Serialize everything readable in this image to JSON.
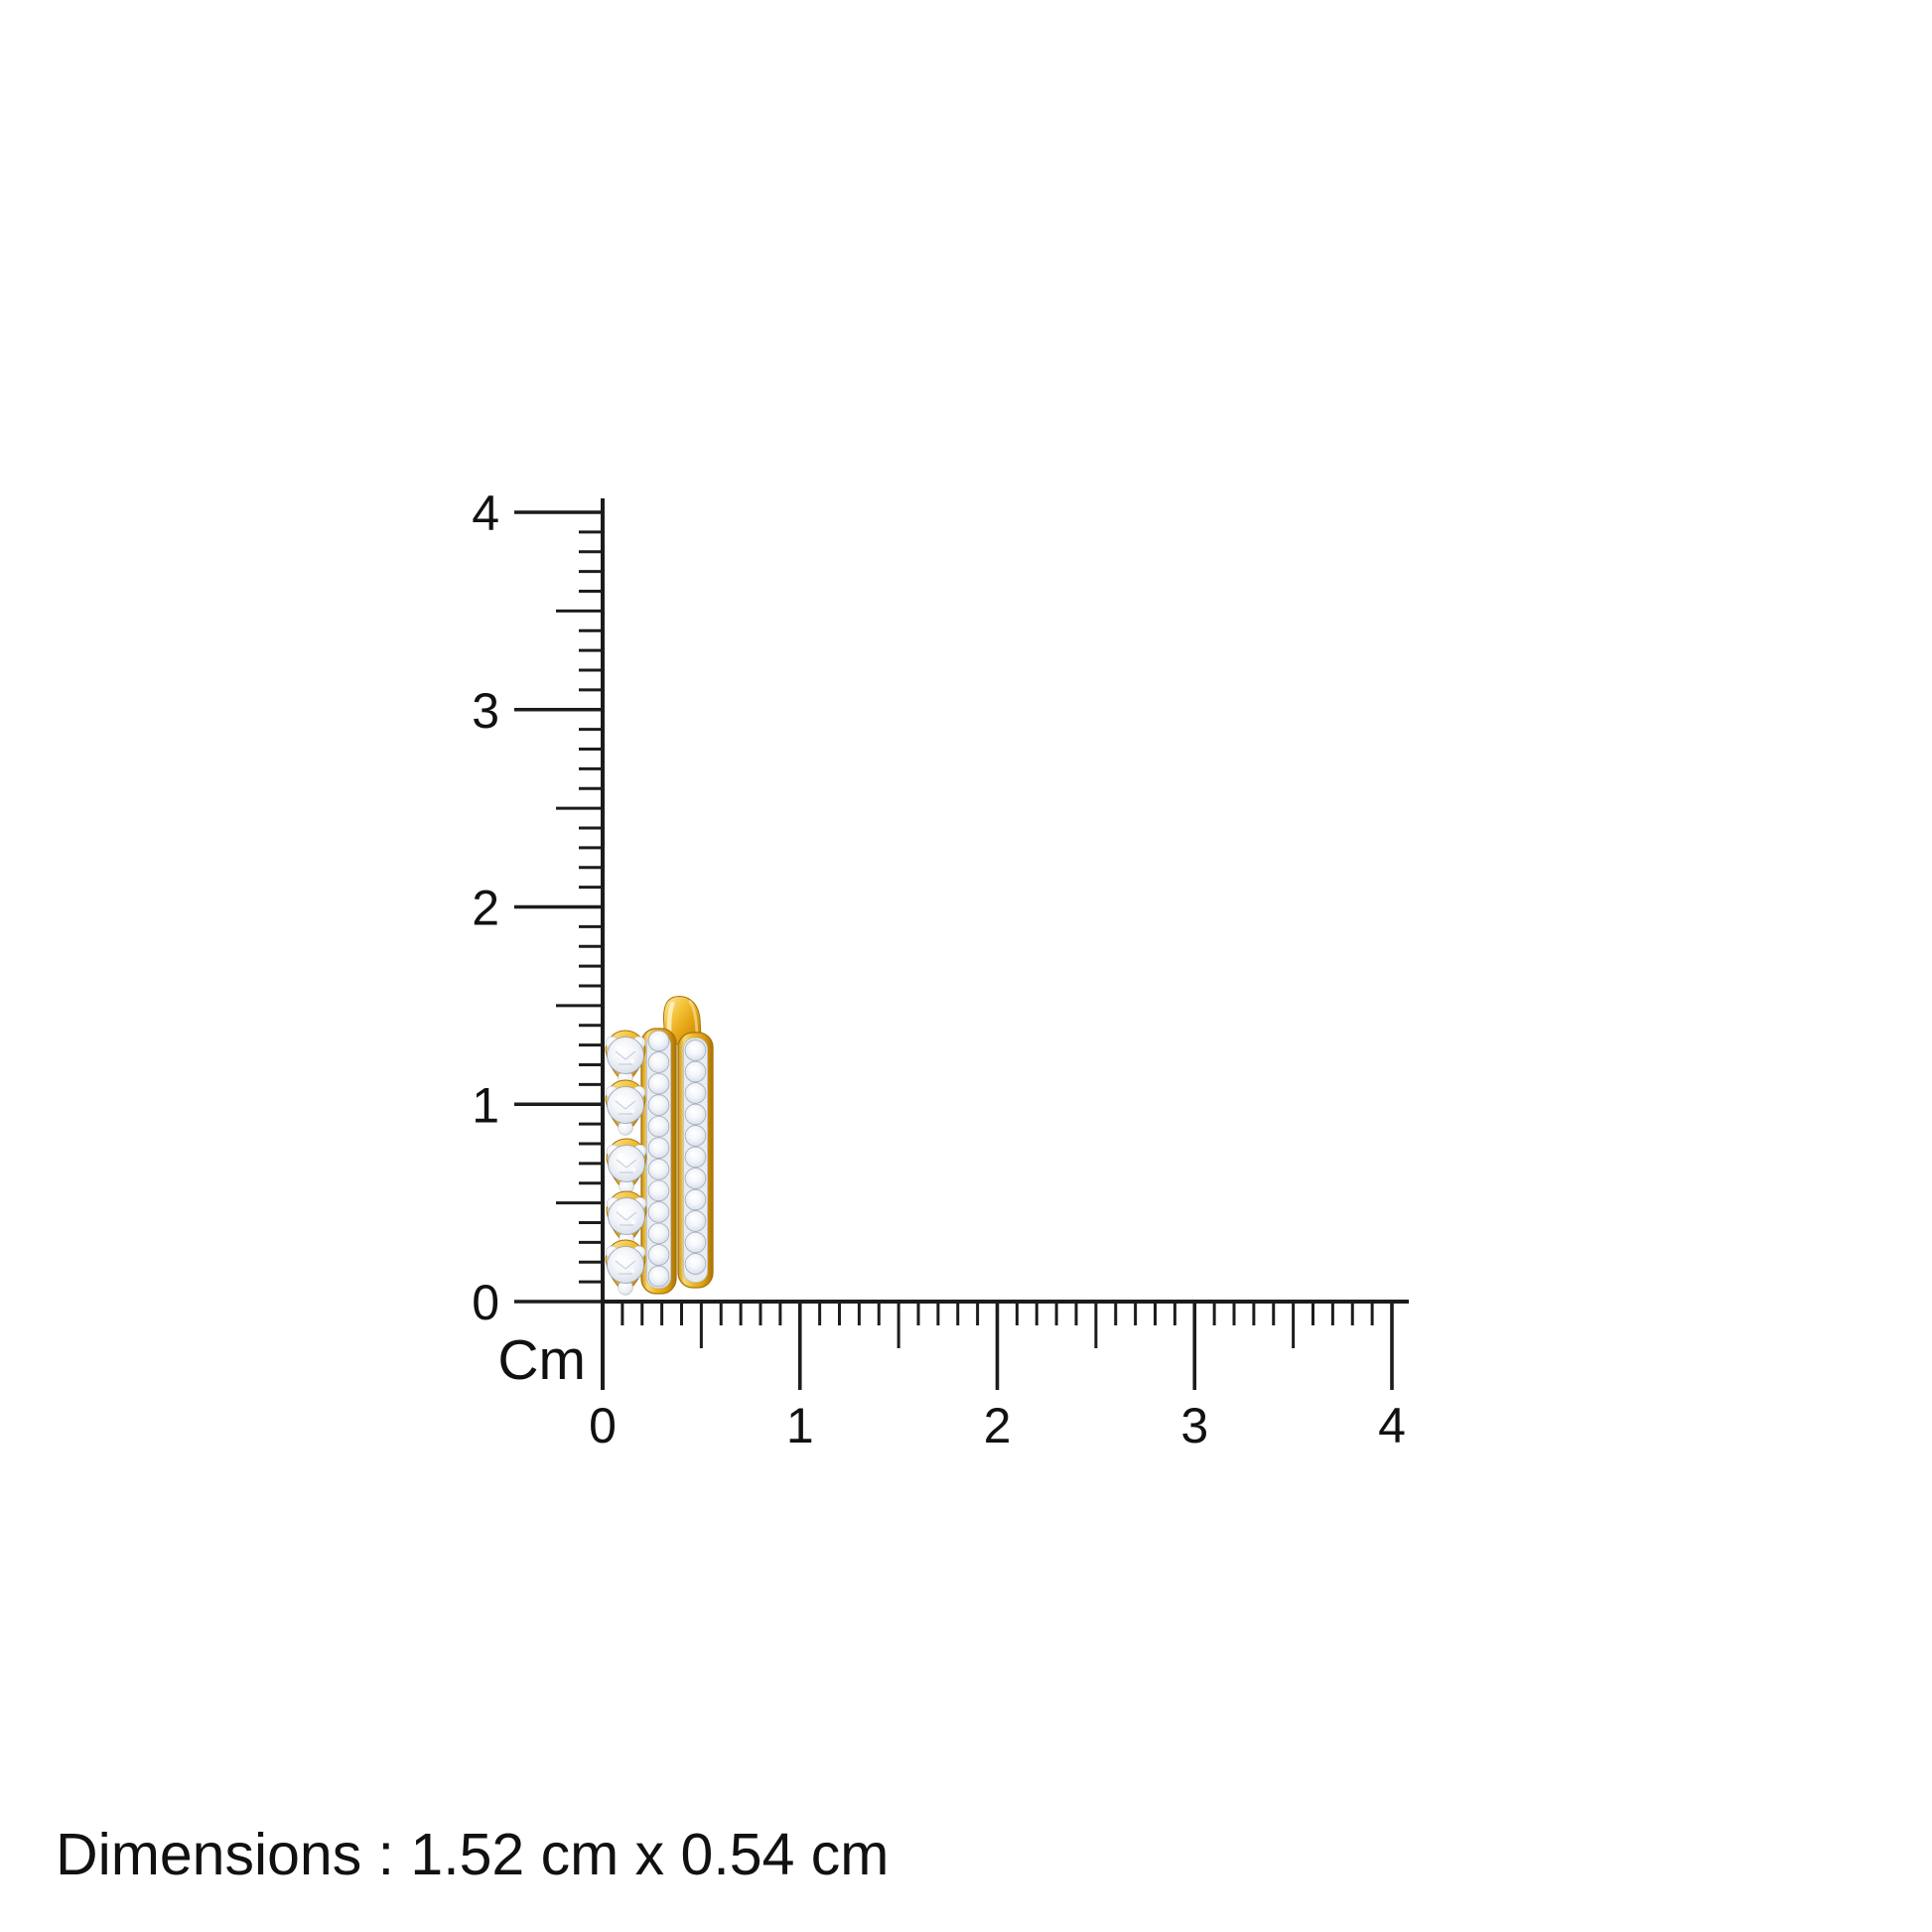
{
  "image_type": "product-dimension-diagram",
  "caption": {
    "text": "Dimensions : 1.52 cm x 0.54 cm"
  },
  "ruler": {
    "unit_label": "Cm",
    "vertical_labels": [
      "0",
      "1",
      "2",
      "3",
      "4"
    ],
    "horizontal_labels": [
      "0",
      "1",
      "2",
      "3",
      "4"
    ],
    "range_cm": [
      0,
      4
    ],
    "minor_divisions_per_cm": 10,
    "line_color": "#1c1c1a"
  },
  "product": {
    "description": "yellow-gold diamond huggie earring with two pave rows and five prong-set stones",
    "height_cm": "1.52",
    "width_cm": "0.54",
    "colors": {
      "gold_light": "#fbe08a",
      "gold_mid": "#e9ad18",
      "gold_dark": "#a9730a",
      "diamond_center": "#ffffff",
      "diamond_mid": "#eef1f7",
      "diamond_edge": "#a4aebf",
      "white_metal": "#e9ecf1"
    }
  }
}
